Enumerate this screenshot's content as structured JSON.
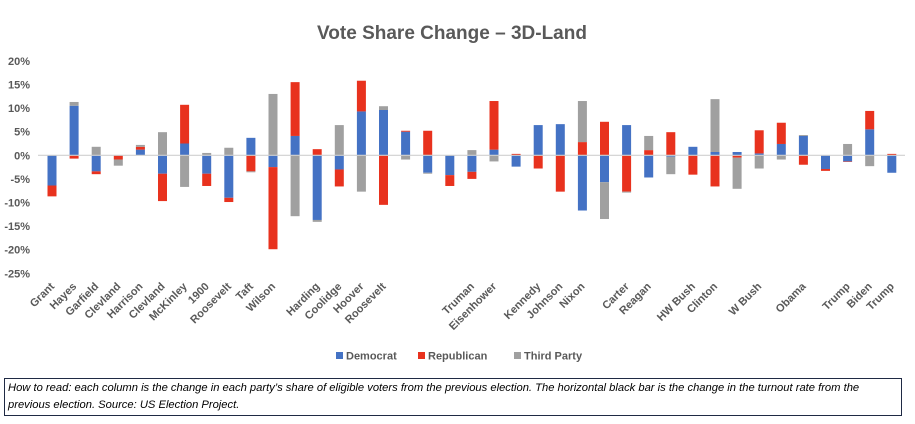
{
  "chart_data": {
    "type": "bar",
    "stacked": true,
    "title": "Vote Share Change – 3D-Land",
    "xlabel": "",
    "ylabel": "",
    "ylim": [
      -25,
      20
    ],
    "yticks": [
      "20%",
      "15%",
      "10%",
      "5%",
      "0%",
      "-5%",
      "-10%",
      "-15%",
      "-20%",
      "-25%"
    ],
    "ytick_values": [
      20,
      15,
      10,
      5,
      0,
      -5,
      -10,
      -15,
      -20,
      -25
    ],
    "grid": false,
    "legend_position": "bottom",
    "categories": [
      "Grant",
      "Hayes",
      "Garfield",
      "Clevland",
      "Harrison",
      "Clevland",
      "McKinley",
      "1900",
      "Roosevelt",
      "Taft",
      "Wilson",
      "",
      "Harding",
      "Coolidge",
      "Hoover",
      "Roosevelt",
      "",
      "",
      "",
      "Truman",
      "Eisenhower",
      "",
      "Kennedy",
      "Johnson",
      "Nixon",
      "",
      "Carter",
      "Reagan",
      "",
      "HW Bush",
      "Clinton",
      "",
      "W Bush",
      "",
      "Obama",
      "",
      "Trump",
      "Biden",
      "Trump"
    ],
    "series": [
      {
        "name": "Democrat",
        "color": "#4472C4",
        "values": [
          -6.4,
          10.5,
          -3.4,
          0,
          1.2,
          -3.9,
          2.5,
          -3.9,
          -9.0,
          3.7,
          -2.5,
          4.1,
          -13.7,
          -3.0,
          9.3,
          9.6,
          5.0,
          -3.7,
          -4.2,
          -3.5,
          1.2,
          -2.4,
          6.4,
          6.6,
          -11.7,
          -5.7,
          6.4,
          -4.7,
          -0.3,
          1.8,
          0.7,
          0.7,
          0.4,
          2.4,
          4.1,
          -2.9,
          -1.3,
          5.5,
          -3.7
        ]
      },
      {
        "name": "Republican",
        "color": "#E8321E",
        "values": [
          -2.3,
          -0.7,
          -0.6,
          -0.9,
          0.6,
          -5.8,
          8.2,
          -2.6,
          -0.9,
          -3.4,
          -17.4,
          11.4,
          1.3,
          -3.6,
          6.5,
          -10.5,
          0.2,
          5.2,
          -2.3,
          -1.5,
          10.3,
          0.3,
          -2.8,
          -7.7,
          2.8,
          7.1,
          -7.7,
          1.1,
          4.9,
          -4.1,
          -6.6,
          -0.5,
          4.9,
          4.5,
          -2.0,
          -0.4,
          -0.1,
          3.9,
          0.3
        ]
      },
      {
        "name": "Third Party",
        "color": "#A0A0A0",
        "values": [
          0,
          0.8,
          1.8,
          -1.3,
          0.4,
          4.9,
          -6.7,
          0.5,
          1.6,
          -0.2,
          13.0,
          -12.9,
          -0.4,
          6.4,
          -7.7,
          0.8,
          -0.9,
          -0.2,
          0,
          1.1,
          -1.3,
          0,
          0,
          0,
          8.7,
          -7.8,
          -0.2,
          3.0,
          -3.7,
          0,
          11.2,
          -6.6,
          -2.8,
          -0.9,
          0.2,
          0,
          2.4,
          -2.3,
          0
        ]
      }
    ]
  },
  "caption": "How to read: each column is the change in each party’s share of eligible voters from the previous election. The horizontal black bar is the change in the turnout rate from the previous election. Source: US Election Project."
}
